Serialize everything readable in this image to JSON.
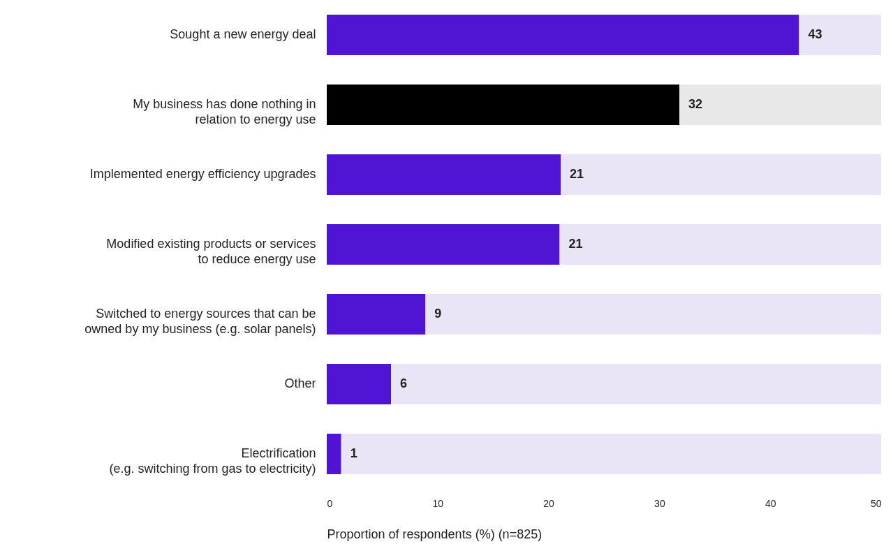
{
  "chart_data": {
    "type": "bar",
    "orientation": "horizontal",
    "stacked": true,
    "xlabel": "Proportion of respondents (%) (n=825)",
    "categories": [
      "Sought a new energy deal",
      "My business has done nothing in\nrelation to energy use",
      "Implemented energy efficiency upgrades",
      "Modified existing products or services\nto reduce energy use",
      "Switched to energy sources that can be\nowned by my business (e.g. solar panels)",
      "Other",
      "Electrification\n(e.g. switching from gas to electricity)"
    ],
    "series": [
      {
        "values": [
          42.6,
          31.8,
          21.1,
          21,
          8.9,
          5.8,
          1.3
        ],
        "colors": [
          "#4f14d4",
          "#000000",
          "#4f14d4",
          "#4f14d4",
          "#4f14d4",
          "#4f14d4",
          "#4f14d4"
        ],
        "value_labels": [
          "43",
          "32",
          "21",
          "21",
          "9",
          "6",
          "1"
        ]
      },
      {
        "values": [
          7.4,
          18.2,
          28.9,
          29,
          41.1,
          44.2,
          48.7
        ],
        "colors": [
          "#e9e5f7",
          "#e8e8e8",
          "#e9e5f7",
          "#e9e5f7",
          "#e9e5f7",
          "#e9e5f7",
          "#e9e5f7"
        ]
      }
    ],
    "xlim": [
      0,
      50
    ],
    "xticks": [
      0,
      10,
      20,
      30,
      40,
      50
    ],
    "grid": false
  }
}
